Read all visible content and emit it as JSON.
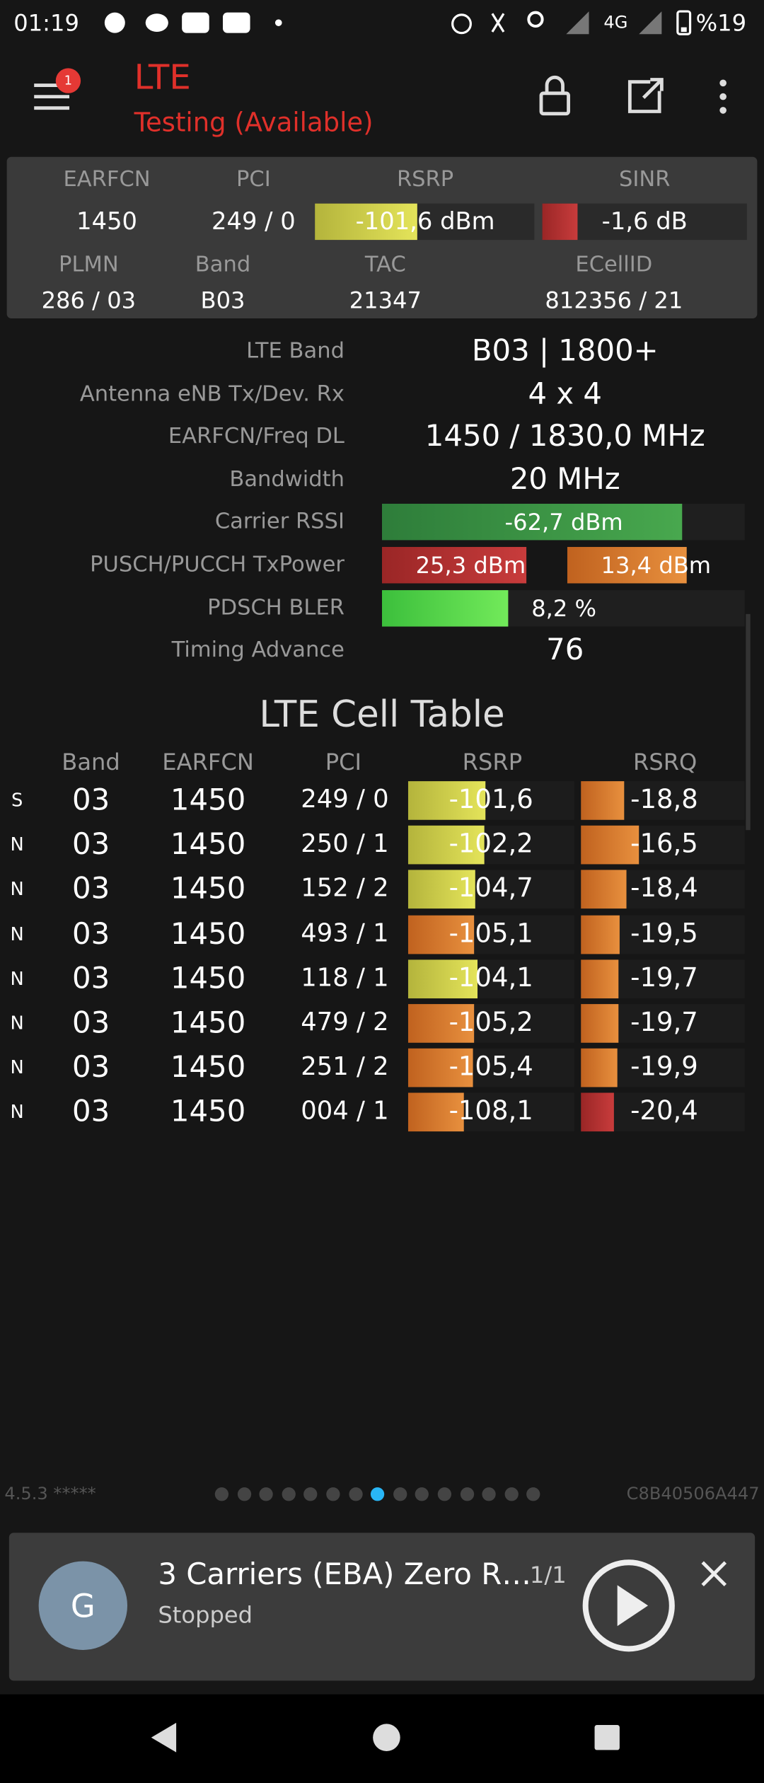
{
  "status_bar": {
    "time": "01:19",
    "network": "4G",
    "battery": "%19"
  },
  "toolbar": {
    "badge": "1",
    "title": "LTE",
    "subtitle": "Testing (Available)"
  },
  "summary": {
    "headers": [
      "EARFCN",
      "PCI",
      "RSRP",
      "SINR"
    ],
    "values": [
      "1450",
      "249 / 0",
      "-101,6 dBm",
      "-1,6 dB"
    ],
    "headers2": [
      "PLMN",
      "Band",
      "TAC",
      "ECellID"
    ],
    "values2": [
      "286 / 03",
      "B03",
      "21347",
      "812356 / 21"
    ]
  },
  "details": [
    {
      "label": "LTE Band",
      "value": "B03 | 1800+"
    },
    {
      "label": "Antenna eNB Tx/Dev. Rx",
      "value": "4 x 4"
    },
    {
      "label": "EARFCN/Freq DL",
      "value": "1450 / 1830,0 MHz"
    },
    {
      "label": "Bandwidth",
      "value": "20 MHz"
    },
    {
      "label": "Carrier RSSI",
      "value": "-62,7 dBm"
    },
    {
      "label": "PUSCH/PUCCH TxPower",
      "values": [
        "25,3 dBm",
        "13,4 dBm"
      ]
    },
    {
      "label": "PDSCH BLER",
      "value": "8,2 %"
    },
    {
      "label": "Timing Advance",
      "value": "76"
    }
  ],
  "cell_table": {
    "title": "LTE Cell Table",
    "columns": [
      "Band",
      "EARFCN",
      "PCI",
      "RSRP",
      "RSRQ"
    ],
    "rows": [
      [
        "S",
        "03",
        "1450",
        "249 / 0",
        "-101,6",
        "-18,8"
      ],
      [
        "N",
        "03",
        "1450",
        "250 / 1",
        "-102,2",
        "-16,5"
      ],
      [
        "N",
        "03",
        "1450",
        "152 / 2",
        "-104,7",
        "-18,4"
      ],
      [
        "N",
        "03",
        "1450",
        "493 / 1",
        "-105,1",
        "-19,5"
      ],
      [
        "N",
        "03",
        "1450",
        "118 / 1",
        "-104,1",
        "-19,7"
      ],
      [
        "N",
        "03",
        "1450",
        "479 / 2",
        "-105,2",
        "-19,7"
      ],
      [
        "N",
        "03",
        "1450",
        "251 / 2",
        "-105,4",
        "-19,9"
      ],
      [
        "N",
        "03",
        "1450",
        "004 / 1",
        "-108,1",
        "-20,4"
      ]
    ]
  },
  "footer": {
    "version": "4.5.3 *****",
    "device_id": "C8B40506A447"
  },
  "notification": {
    "avatar": "G",
    "title": "3 Carriers (EBA) Zero R…",
    "counter": "1/1",
    "status": "Stopped"
  }
}
